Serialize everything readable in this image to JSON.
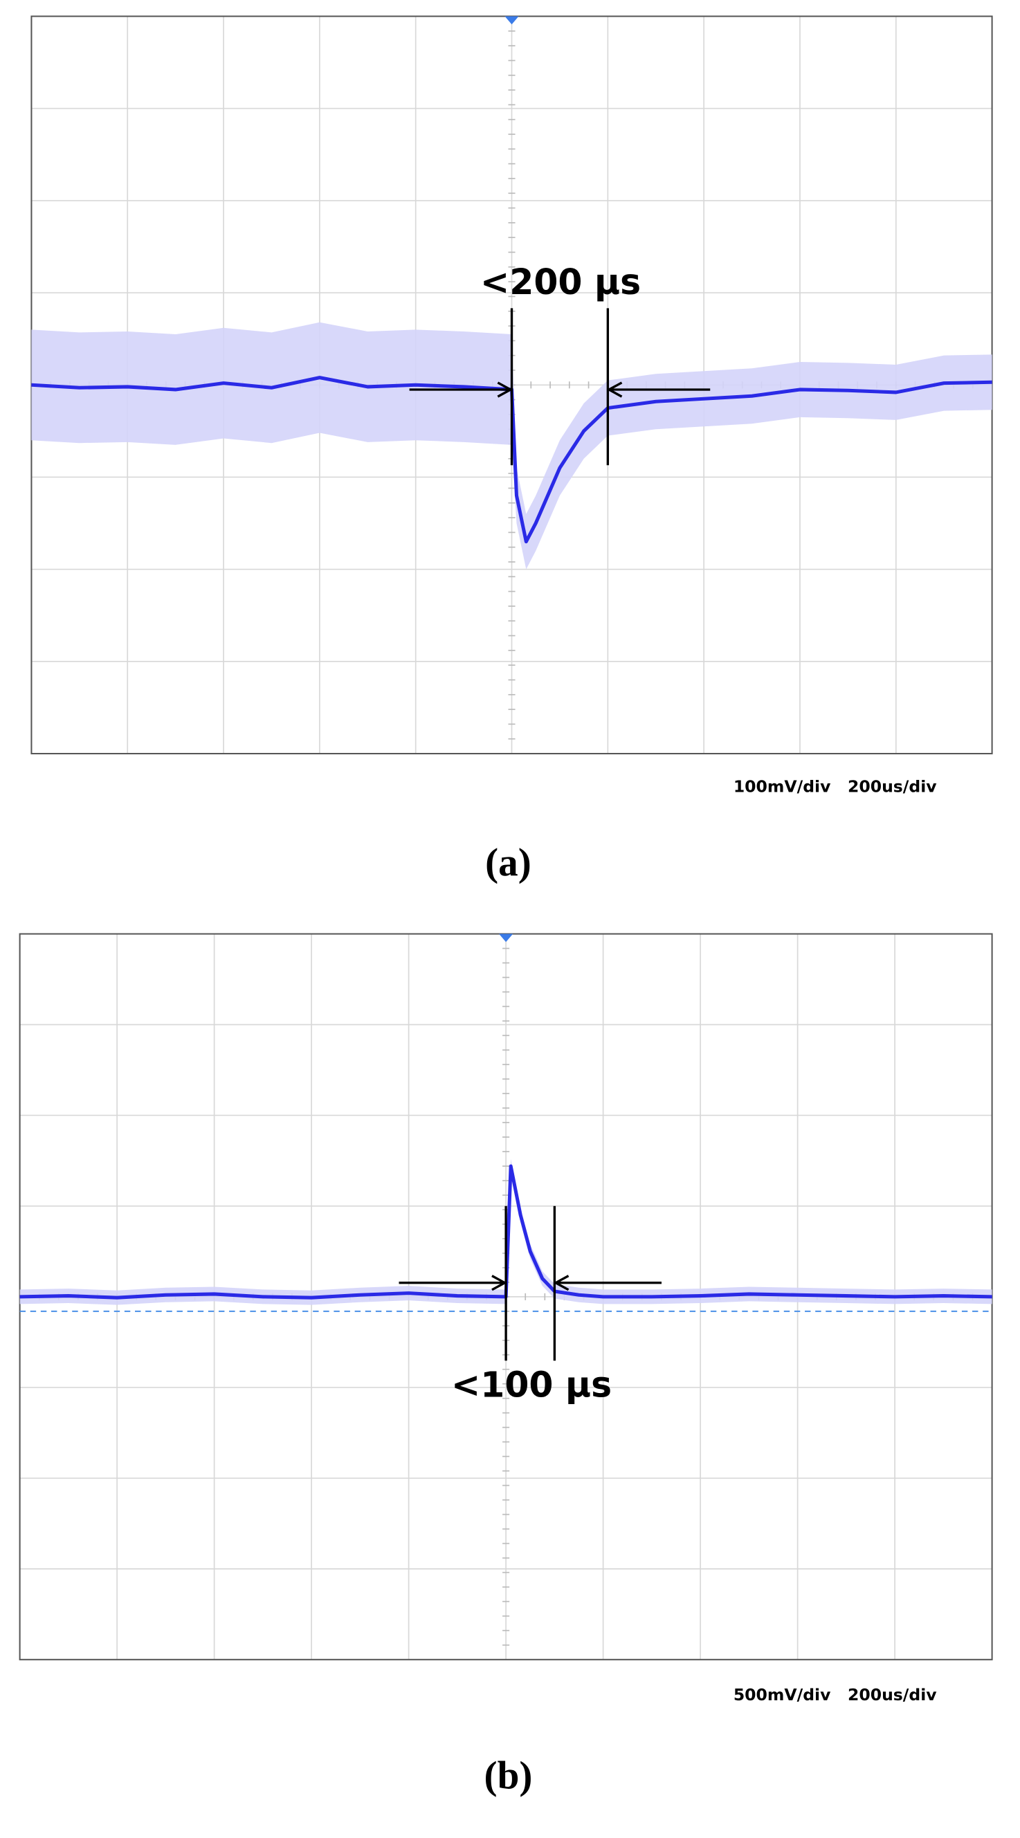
{
  "chart_data": [
    {
      "type": "line",
      "annotation": "<200 µs",
      "scale_label": "100mV/div   200us/div",
      "caption": "(a)",
      "xlim": [
        -1000,
        1000
      ],
      "ylim": [
        -400,
        400
      ],
      "xticks": [
        -1000,
        -800,
        -600,
        -400,
        -200,
        0,
        200,
        400,
        600,
        800,
        1000
      ],
      "yticks": [
        -400,
        -300,
        -200,
        -100,
        0,
        100,
        200,
        300,
        400
      ],
      "grid": true,
      "markers": [
        0,
        200
      ],
      "x": [
        -1000,
        -900,
        -800,
        -700,
        -600,
        -500,
        -400,
        -300,
        -200,
        -100,
        0,
        10,
        30,
        50,
        100,
        150,
        200,
        300,
        400,
        500,
        600,
        700,
        800,
        900,
        1000
      ],
      "series": [
        {
          "color": "#2a2ae6",
          "values": [
            0,
            -3,
            -2,
            -5,
            2,
            -3,
            8,
            -2,
            0,
            -2,
            -5,
            -120,
            -170,
            -150,
            -90,
            -50,
            -25,
            -18,
            -15,
            -12,
            -5,
            -6,
            -8,
            2,
            3
          ]
        },
        {
          "color": "#d4d4fa",
          "values": [
            60,
            57,
            58,
            55,
            62,
            57,
            68,
            58,
            60,
            58,
            55,
            -90,
            -140,
            -120,
            -60,
            -20,
            5,
            12,
            15,
            18,
            25,
            24,
            22,
            32,
            33
          ]
        },
        {
          "color": "#d4d4fa",
          "values": [
            -60,
            -63,
            -62,
            -65,
            -58,
            -63,
            -52,
            -62,
            -60,
            -62,
            -65,
            -150,
            -200,
            -180,
            -120,
            -80,
            -55,
            -48,
            -45,
            -42,
            -35,
            -36,
            -38,
            -28,
            -27
          ]
        }
      ]
    },
    {
      "type": "line",
      "annotation": "<100 µs",
      "scale_label": "500mV/div   200us/div",
      "caption": "(b)",
      "xlim": [
        -1000,
        1000
      ],
      "ylim": [
        -2000,
        2000
      ],
      "xticks": [
        -1000,
        -800,
        -600,
        -400,
        -200,
        0,
        200,
        400,
        600,
        800,
        1000
      ],
      "yticks": [
        -2000,
        -1500,
        -1000,
        -500,
        0,
        500,
        1000,
        1500,
        2000
      ],
      "grid": true,
      "markers": [
        0,
        100
      ],
      "reference_line": -80,
      "x": [
        -1000,
        -900,
        -800,
        -700,
        -600,
        -500,
        -400,
        -300,
        -200,
        -100,
        0,
        10,
        30,
        50,
        75,
        100,
        150,
        200,
        300,
        400,
        500,
        600,
        700,
        800,
        900,
        1000
      ],
      "series": [
        {
          "color": "#2a2ae6",
          "values": [
            0,
            5,
            -5,
            10,
            15,
            0,
            -5,
            10,
            20,
            5,
            0,
            720,
            450,
            250,
            100,
            30,
            10,
            0,
            0,
            5,
            15,
            10,
            5,
            0,
            5,
            0
          ]
        },
        {
          "color": "#d4d4fa",
          "values": [
            40,
            45,
            35,
            50,
            55,
            40,
            35,
            50,
            60,
            45,
            40,
            760,
            490,
            290,
            140,
            70,
            50,
            40,
            40,
            45,
            55,
            50,
            45,
            40,
            45,
            40
          ]
        },
        {
          "color": "#d4d4fa",
          "values": [
            -40,
            -35,
            -45,
            -30,
            -25,
            -40,
            -45,
            -30,
            -20,
            -35,
            -40,
            680,
            410,
            210,
            60,
            -10,
            -30,
            -40,
            -40,
            -35,
            -25,
            -30,
            -35,
            -40,
            -35,
            -40
          ]
        }
      ]
    }
  ]
}
